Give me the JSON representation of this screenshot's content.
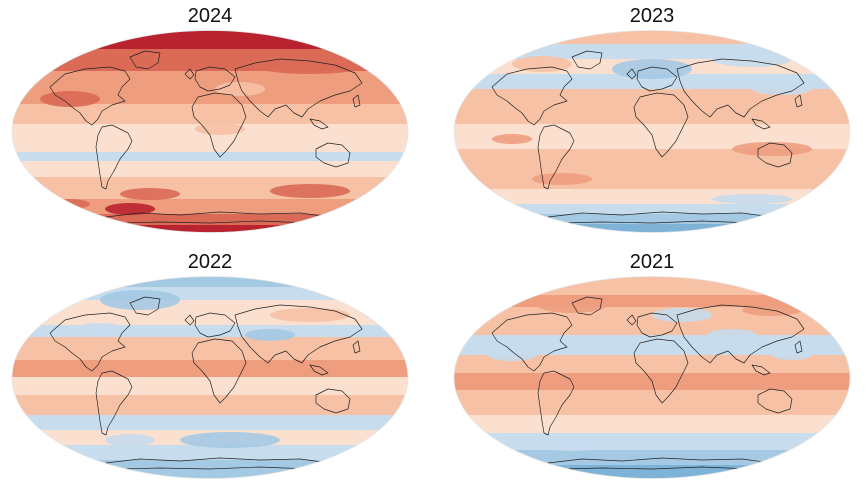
{
  "figure": {
    "panels": [
      {
        "title": "2024",
        "scheme": "hot"
      },
      {
        "title": "2023",
        "scheme": "mixed"
      },
      {
        "title": "2022",
        "scheme": "cool"
      },
      {
        "title": "2021",
        "scheme": "mild"
      }
    ]
  },
  "colors": {
    "neutral": "#fbe0d0",
    "light_warm": "#f6c1a5",
    "warm": "#ee9d7f",
    "hot": "#da6a56",
    "very_hot": "#b8232f",
    "light_cool": "#c7dced",
    "cool": "#a4c9e3",
    "cold": "#7eb2d6",
    "coast": "#222222"
  }
}
